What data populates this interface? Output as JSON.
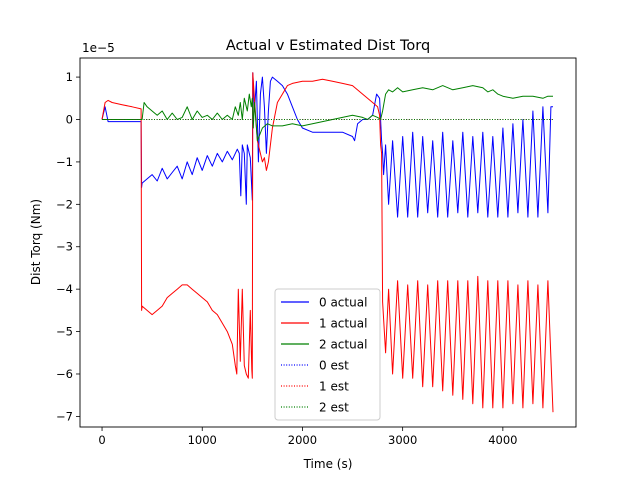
{
  "chart_data": {
    "type": "line",
    "title": "Actual v Estimated Dist Torq",
    "xlabel": "Time (s)",
    "ylabel": "Dist Torq (Nm)",
    "y_scale_label": "1e−5",
    "y_multiplier": 1e-05,
    "xlim": [
      -220,
      4730
    ],
    "ylim": [
      -7.25,
      1.45
    ],
    "x_ticks": [
      0,
      1000,
      2000,
      3000,
      4000
    ],
    "x_tick_labels": [
      "0",
      "1000",
      "2000",
      "3000",
      "4000"
    ],
    "y_ticks": [
      1,
      0,
      -1,
      -2,
      -3,
      -4,
      -5,
      -6,
      -7
    ],
    "y_tick_labels": [
      "1",
      "0",
      "−1",
      "−2",
      "−3",
      "−4",
      "−5",
      "−6",
      "−7"
    ],
    "grid": false,
    "legend_position": "lower-center",
    "legend": [
      "0 actual",
      "1 actual",
      "2 actual",
      "0 est",
      "1 est",
      "2 est"
    ],
    "colors": {
      "0": "#0000ff",
      "1": "#ff0000",
      "2": "#008000",
      "axis": "#000000"
    },
    "series": [
      {
        "name": "0 actual",
        "color": "#0000ff",
        "style": "solid",
        "x": [
          0,
          30,
          60,
          100,
          200,
          300,
          390,
          395,
          400,
          450,
          500,
          550,
          600,
          650,
          700,
          750,
          800,
          850,
          900,
          950,
          1000,
          1050,
          1100,
          1150,
          1200,
          1250,
          1300,
          1350,
          1370,
          1385,
          1400,
          1420,
          1440,
          1450,
          1480,
          1500,
          1505,
          1520,
          1540,
          1560,
          1580,
          1600,
          1620,
          1640,
          1660,
          1680,
          1700,
          1750,
          1800,
          1850,
          1900,
          1950,
          2000,
          2100,
          2200,
          2300,
          2400,
          2500,
          2520,
          2550,
          2600,
          2650,
          2700,
          2740,
          2770,
          2790,
          2800,
          2810,
          2830,
          2860,
          2900,
          2950,
          3000,
          3050,
          3100,
          3150,
          3200,
          3250,
          3300,
          3350,
          3400,
          3450,
          3500,
          3550,
          3600,
          3650,
          3700,
          3750,
          3800,
          3850,
          3900,
          3950,
          4000,
          4050,
          4100,
          4150,
          4200,
          4250,
          4300,
          4350,
          4400,
          4450,
          4480,
          4500
        ],
        "y": [
          0,
          0.3,
          -0.05,
          -0.05,
          -0.05,
          -0.05,
          -0.05,
          -1.6,
          -1.5,
          -1.4,
          -1.3,
          -1.45,
          -1.15,
          -1.4,
          -1.25,
          -1.1,
          -1.4,
          -1.0,
          -1.3,
          -0.9,
          -1.2,
          -0.85,
          -1.1,
          -0.8,
          -1.0,
          -0.75,
          -0.95,
          -0.7,
          -0.8,
          -1.8,
          -0.6,
          -0.8,
          -2.0,
          -0.6,
          -0.9,
          -1.9,
          1.1,
          0.2,
          0.9,
          -1.0,
          0.6,
          1.0,
          0.3,
          -0.8,
          0.2,
          0.9,
          1.0,
          0.9,
          0.8,
          0.6,
          0.3,
          0.0,
          -0.2,
          -0.3,
          -0.3,
          -0.3,
          -0.3,
          -0.4,
          -0.5,
          -0.1,
          0.0,
          0.0,
          0.1,
          0.6,
          0.5,
          -0.5,
          -0.8,
          -1.3,
          -0.6,
          -2.0,
          -0.5,
          -2.3,
          -0.4,
          -2.3,
          -0.3,
          -2.3,
          -0.4,
          -2.2,
          -0.5,
          -2.3,
          -0.3,
          -2.3,
          -0.5,
          -2.2,
          -0.3,
          -2.3,
          -0.4,
          -2.2,
          -0.3,
          -2.3,
          -0.4,
          -2.3,
          -0.2,
          -2.3,
          -0.1,
          -2.2,
          0.0,
          -2.3,
          0.2,
          -2.3,
          0.3,
          -2.2,
          0.3,
          0.3
        ]
      },
      {
        "name": "1 actual",
        "color": "#ff0000",
        "style": "solid",
        "x": [
          0,
          30,
          60,
          100,
          200,
          300,
          390,
          395,
          400,
          450,
          500,
          550,
          600,
          650,
          700,
          750,
          800,
          850,
          900,
          950,
          1000,
          1050,
          1100,
          1150,
          1200,
          1250,
          1300,
          1330,
          1345,
          1360,
          1380,
          1400,
          1420,
          1440,
          1460,
          1480,
          1495,
          1500,
          1505,
          1520,
          1550,
          1580,
          1600,
          1620,
          1640,
          1660,
          1680,
          1700,
          1750,
          1800,
          1850,
          1900,
          2000,
          2100,
          2200,
          2300,
          2400,
          2500,
          2600,
          2700,
          2750,
          2770,
          2780,
          2790,
          2800,
          2830,
          2860,
          2900,
          2950,
          3000,
          3050,
          3100,
          3150,
          3200,
          3250,
          3300,
          3350,
          3400,
          3450,
          3500,
          3550,
          3600,
          3650,
          3700,
          3750,
          3800,
          3850,
          3900,
          3950,
          4000,
          4050,
          4100,
          4150,
          4200,
          4250,
          4300,
          4350,
          4400,
          4450,
          4500
        ],
        "y": [
          0,
          0.4,
          0.45,
          0.4,
          0.35,
          0.3,
          0.25,
          -4.5,
          -4.4,
          -4.5,
          -4.6,
          -4.5,
          -4.4,
          -4.2,
          -4.1,
          -4.0,
          -3.9,
          -3.9,
          -4.0,
          -4.1,
          -4.2,
          -4.3,
          -4.5,
          -4.6,
          -4.8,
          -5.0,
          -5.3,
          -5.8,
          -6.0,
          -4.0,
          -5.7,
          -4.0,
          -5.8,
          -6.0,
          -6.1,
          -4.5,
          -5.9,
          -6.1,
          1.1,
          0.5,
          -0.5,
          -0.8,
          -1.0,
          -0.9,
          -1.2,
          -1.0,
          -0.6,
          -0.2,
          0.4,
          0.6,
          0.8,
          0.85,
          0.9,
          0.9,
          0.95,
          0.9,
          0.85,
          0.8,
          0.6,
          0.4,
          0.3,
          0.1,
          -0.6,
          -0.8,
          -4.3,
          -5.5,
          -4.0,
          -6.0,
          -3.8,
          -6.1,
          -3.9,
          -6.1,
          -3.8,
          -6.3,
          -3.9,
          -6.3,
          -3.8,
          -6.4,
          -3.8,
          -6.5,
          -3.8,
          -6.6,
          -3.8,
          -6.7,
          -3.7,
          -6.8,
          -3.8,
          -6.8,
          -3.8,
          -6.8,
          -3.8,
          -6.7,
          -3.9,
          -6.8,
          -3.8,
          -6.7,
          -3.9,
          -6.8,
          -3.8,
          -6.9
        ]
      },
      {
        "name": "2 actual",
        "color": "#008000",
        "style": "solid",
        "x": [
          0,
          50,
          100,
          200,
          300,
          400,
          420,
          450,
          500,
          550,
          600,
          650,
          700,
          750,
          800,
          850,
          900,
          950,
          1000,
          1050,
          1100,
          1150,
          1200,
          1250,
          1300,
          1330,
          1360,
          1380,
          1400,
          1420,
          1450,
          1470,
          1490,
          1500,
          1510,
          1520,
          1550,
          1600,
          1650,
          1700,
          1750,
          1800,
          1900,
          2000,
          2100,
          2200,
          2300,
          2400,
          2500,
          2600,
          2650,
          2700,
          2750,
          2780,
          2800,
          2830,
          2860,
          2900,
          2950,
          3000,
          3100,
          3200,
          3300,
          3400,
          3500,
          3600,
          3700,
          3800,
          3850,
          3900,
          3950,
          4000,
          4100,
          4200,
          4300,
          4400,
          4450,
          4500
        ],
        "y": [
          0,
          0,
          0,
          0,
          0,
          0,
          0.4,
          0.3,
          0.2,
          0.1,
          0.2,
          0.0,
          0.15,
          0.0,
          0.05,
          0.3,
          0.0,
          0.2,
          0.05,
          0.1,
          0.0,
          0.15,
          0.0,
          0.1,
          0.0,
          0.3,
          0.1,
          0.4,
          0.0,
          0.5,
          0.2,
          0.6,
          0.3,
          0.5,
          -0.2,
          0.4,
          -0.5,
          -0.2,
          -0.1,
          -0.15,
          -0.15,
          -0.15,
          -0.1,
          -0.15,
          -0.1,
          -0.05,
          0.0,
          0.05,
          0.1,
          0.05,
          0.0,
          0.1,
          0.05,
          0.0,
          0.2,
          0.6,
          0.7,
          0.65,
          0.75,
          0.65,
          0.7,
          0.75,
          0.7,
          0.8,
          0.7,
          0.75,
          0.8,
          0.75,
          0.65,
          0.7,
          0.6,
          0.55,
          0.5,
          0.55,
          0.55,
          0.5,
          0.55,
          0.55
        ]
      },
      {
        "name": "0 est",
        "color": "#0000ff",
        "style": "dotted",
        "x": [
          0,
          4500
        ],
        "y": [
          0,
          0
        ]
      },
      {
        "name": "1 est",
        "color": "#ff0000",
        "style": "dotted",
        "x": [
          0,
          4500
        ],
        "y": [
          0,
          0
        ]
      },
      {
        "name": "2 est",
        "color": "#008000",
        "style": "dotted",
        "x": [
          0,
          4500
        ],
        "y": [
          0,
          0
        ]
      }
    ]
  }
}
